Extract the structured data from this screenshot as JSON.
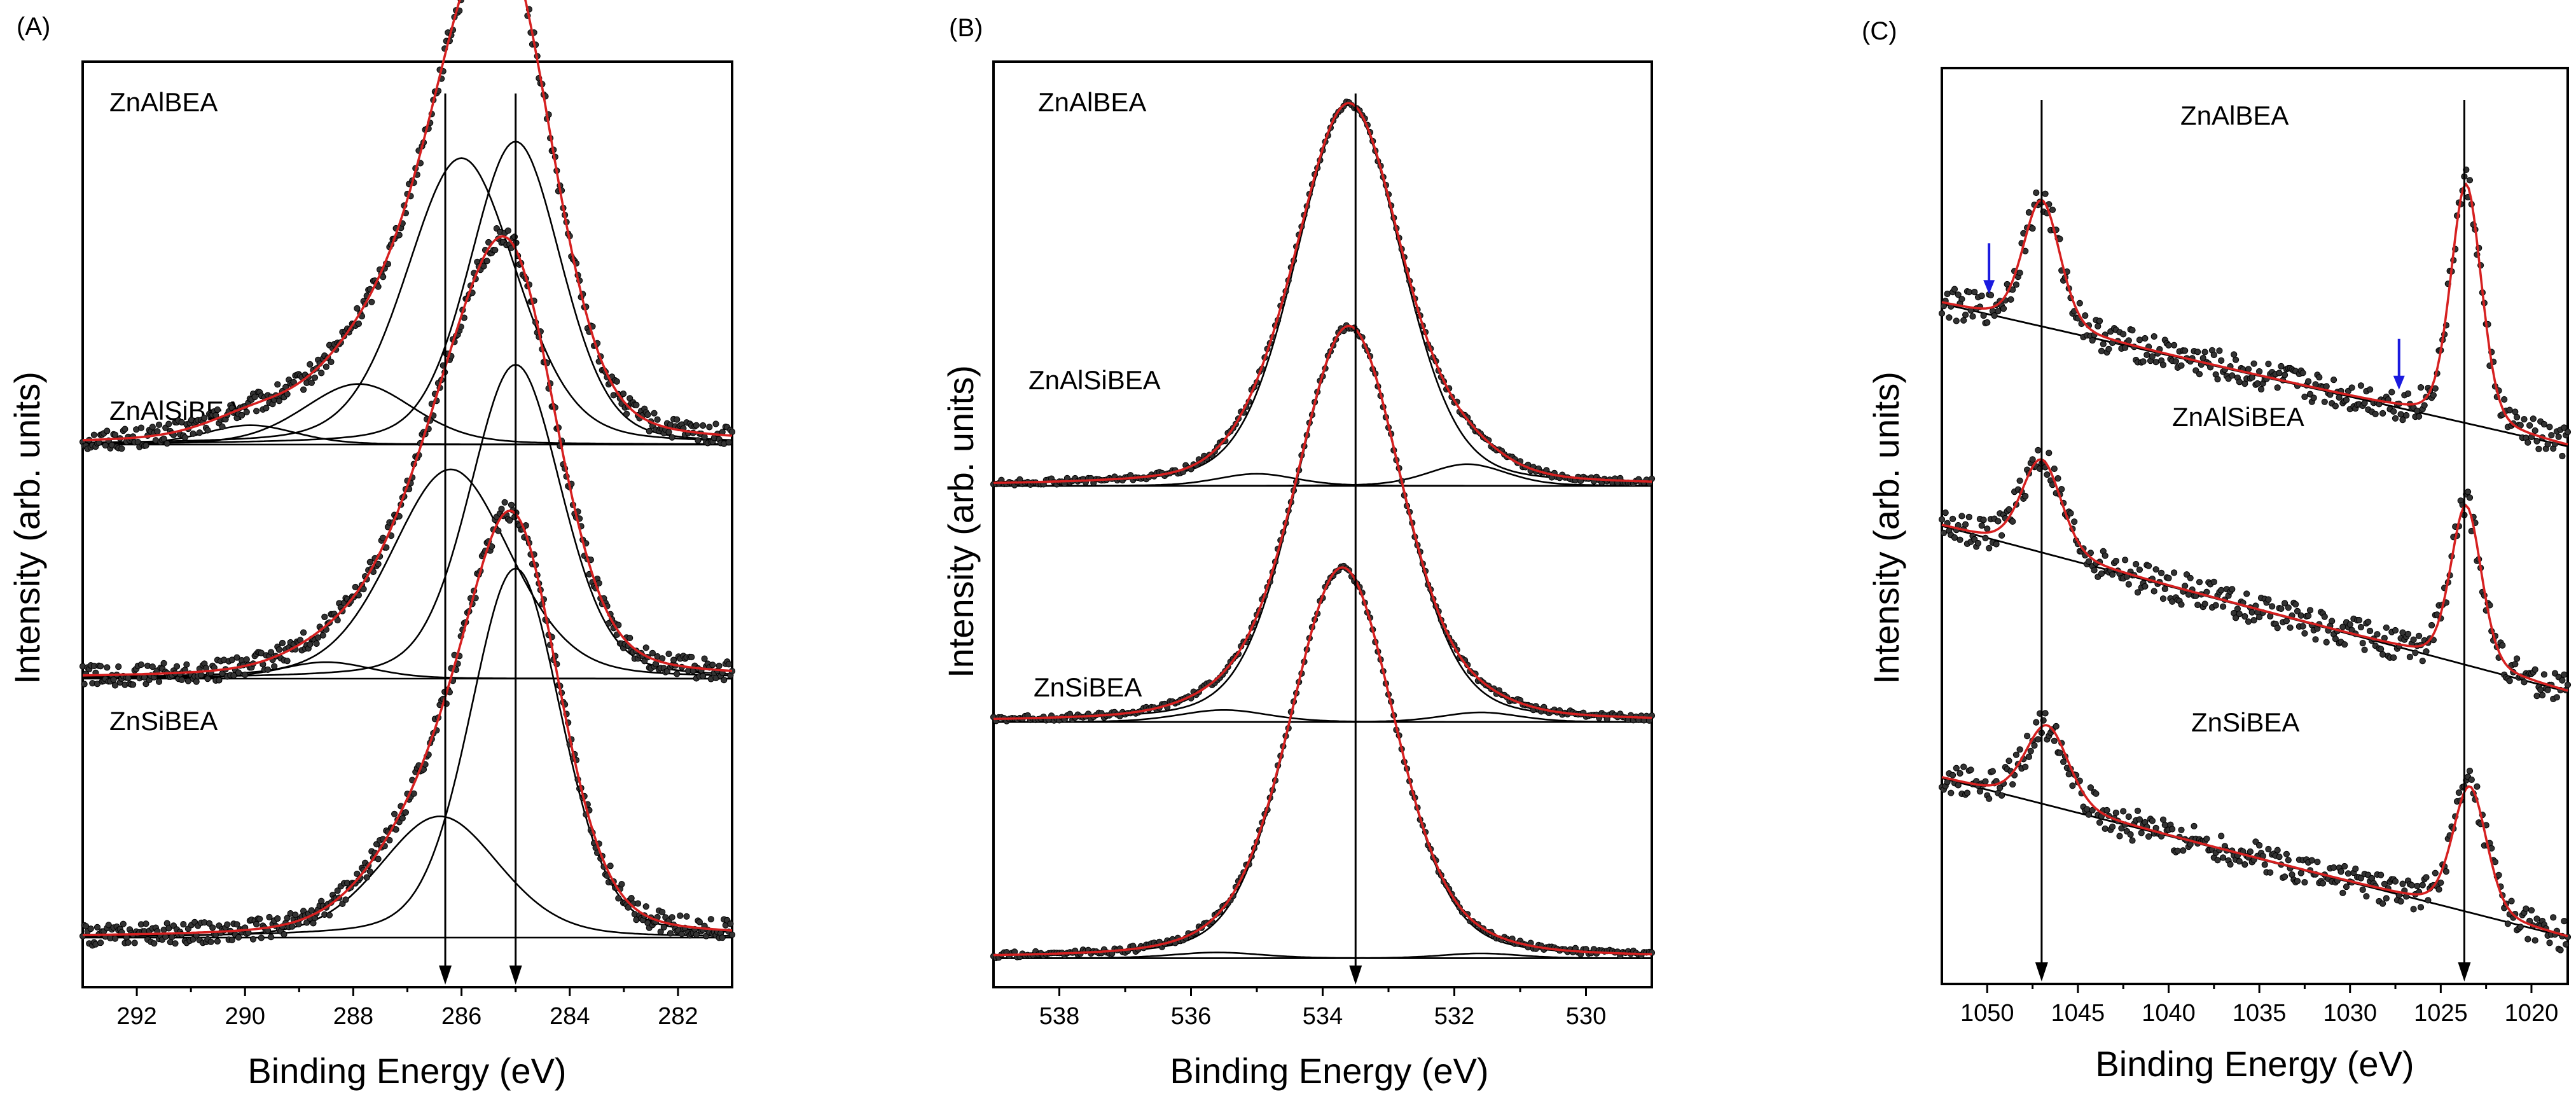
{
  "figure": {
    "colors": {
      "fit_line": "#d62020",
      "raw_points": "#333333",
      "components": "#000000",
      "blue_arrow": "#1a1adf"
    }
  },
  "chart_data": [
    {
      "type": "line",
      "panel_label": "(A)",
      "xlabel": "Binding Energy (eV)",
      "ylabel": "Intensity (arb. units)",
      "xlim": [
        293,
        281
      ],
      "x_reversed": true,
      "x_ticks": [
        292,
        290,
        288,
        286,
        284,
        282
      ],
      "y_ticks": [],
      "grid": false,
      "vertical_markers": [
        286.3,
        285.0
      ],
      "traces": [
        {
          "label": "ZnAlBEA",
          "offset": 0.9,
          "baseline": [
            0.025,
            0.0
          ],
          "peaks": [
            {
              "center": 285.0,
              "height": 0.55,
              "fwhm": 2.0
            },
            {
              "center": 286.0,
              "height": 0.52,
              "fwhm": 2.4
            },
            {
              "center": 287.9,
              "height": 0.11,
              "fwhm": 2.4
            },
            {
              "center": 289.9,
              "height": 0.035,
              "fwhm": 2.0
            }
          ],
          "noise": 0.012
        },
        {
          "label": "ZnAlSiBEA",
          "offset": 0.46,
          "baseline": [
            0.04,
            0.0
          ],
          "peaks": [
            {
              "center": 285.0,
              "height": 0.57,
              "fwhm": 2.0
            },
            {
              "center": 286.2,
              "height": 0.38,
              "fwhm": 2.6
            },
            {
              "center": 288.5,
              "height": 0.03,
              "fwhm": 2.0
            }
          ],
          "noise": 0.012
        },
        {
          "label": "ZnSiBEA",
          "offset": 0.0,
          "baseline": [
            0.03,
            0.0
          ],
          "peaks": [
            {
              "center": 285.0,
              "height": 0.67,
              "fwhm": 2.0
            },
            {
              "center": 286.4,
              "height": 0.22,
              "fwhm": 2.6
            }
          ],
          "noise": 0.012
        }
      ]
    },
    {
      "type": "line",
      "panel_label": "(B)",
      "xlabel": "Binding Energy (eV)",
      "ylabel": "Intensity (arb. units)",
      "xlim": [
        539,
        529
      ],
      "x_reversed": true,
      "x_ticks": [
        538,
        536,
        534,
        532,
        530
      ],
      "y_ticks": [],
      "grid": false,
      "vertical_markers": [
        533.5
      ],
      "traces": [
        {
          "label": "ZnAlBEA",
          "offset": 0.98,
          "baseline": [
            0.0,
            0.0
          ],
          "peaks": [
            {
              "center": 533.6,
              "height": 0.79,
              "fwhm": 1.9
            },
            {
              "center": 535.0,
              "height": 0.025,
              "fwhm": 1.4
            },
            {
              "center": 531.8,
              "height": 0.045,
              "fwhm": 1.4
            }
          ],
          "noise": 0.0
        },
        {
          "label": "ZnAlSiBEA",
          "offset": 0.49,
          "baseline": [
            0.0,
            0.0
          ],
          "peaks": [
            {
              "center": 533.6,
              "height": 0.82,
              "fwhm": 1.9
            },
            {
              "center": 535.5,
              "height": 0.025,
              "fwhm": 1.6
            },
            {
              "center": 531.6,
              "height": 0.02,
              "fwhm": 1.4
            }
          ],
          "noise": 0.0
        },
        {
          "label": "ZnSiBEA",
          "offset": 0.0,
          "baseline": [
            0.0,
            0.0
          ],
          "peaks": [
            {
              "center": 533.7,
              "height": 0.81,
              "fwhm": 1.9
            },
            {
              "center": 535.6,
              "height": 0.012,
              "fwhm": 1.6
            },
            {
              "center": 531.6,
              "height": 0.01,
              "fwhm": 1.4
            }
          ],
          "noise": 0.0
        }
      ]
    },
    {
      "type": "line",
      "panel_label": "(C)",
      "xlabel": "Binding Energy (eV)",
      "ylabel": "Intensity (arb. units)",
      "xlim": [
        1052.5,
        1018
      ],
      "x_reversed": true,
      "x_ticks": [
        1050,
        1045,
        1040,
        1035,
        1030,
        1025,
        1020
      ],
      "y_ticks": [],
      "grid": false,
      "vertical_markers": [
        1047.0,
        1023.7
      ],
      "annotation_arrows": [
        1049.9,
        1027.3
      ],
      "traces": [
        {
          "label": "ZnAlBEA",
          "offset": 0.74,
          "baseline": [
            0.215,
            1052.5,
            0.0,
            1018.0
          ],
          "peaks": [
            {
              "center": 1047.0,
              "height": 0.19,
              "fwhm": 2.4
            },
            {
              "center": 1023.6,
              "height": 0.36,
              "fwhm": 2.0
            }
          ],
          "noise": 0.015
        },
        {
          "label": "ZnAlSiBEA",
          "offset": 0.37,
          "baseline": [
            0.25,
            1052.5,
            0.0,
            1018.0
          ],
          "peaks": [
            {
              "center": 1047.0,
              "height": 0.14,
              "fwhm": 2.6
            },
            {
              "center": 1023.6,
              "height": 0.24,
              "fwhm": 2.0
            }
          ],
          "noise": 0.015
        },
        {
          "label": "ZnSiBEA",
          "offset": 0.0,
          "baseline": [
            0.24,
            1052.5,
            0.0,
            1018.0
          ],
          "peaks": [
            {
              "center": 1046.7,
              "height": 0.12,
              "fwhm": 2.8
            },
            {
              "center": 1023.4,
              "height": 0.19,
              "fwhm": 2.2
            }
          ],
          "noise": 0.015
        }
      ]
    }
  ]
}
